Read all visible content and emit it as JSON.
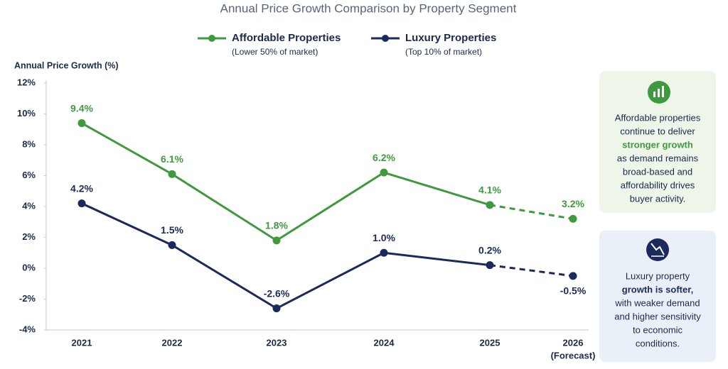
{
  "chart_data": {
    "type": "line",
    "title": "Annual Price Growth Comparison by Property Segment",
    "y_label": "Annual Price Growth (%)",
    "categories": [
      "2021",
      "2022",
      "2023",
      "2024",
      "2025",
      "2026"
    ],
    "category_notes": [
      null,
      null,
      null,
      null,
      null,
      "(Forecast)"
    ],
    "series": [
      {
        "name": "Affordable Properties",
        "description": "(Lower 50% of market)",
        "color": "#3f9a3f",
        "values": [
          9.4,
          6.1,
          1.8,
          6.2,
          4.1,
          3.2
        ],
        "value_labels": [
          "9.4%",
          "6.1%",
          "1.8%",
          "6.2%",
          "4.1%",
          "3.2%"
        ]
      },
      {
        "name": "Luxury Properties",
        "description": "(Top 10% of market)",
        "color": "#1b2a5c",
        "values": [
          4.2,
          1.5,
          -2.6,
          1.0,
          0.2,
          -0.5
        ],
        "value_labels": [
          "4.2%",
          "1.5%",
          "-2.6%",
          "1.0%",
          "0.2%",
          "-0.5%"
        ]
      }
    ],
    "ylim": [
      -4,
      12
    ],
    "yticks": [
      {
        "value": -4,
        "label": "-4%"
      },
      {
        "value": -2,
        "label": "-2%"
      },
      {
        "value": 0,
        "label": "0%"
      },
      {
        "value": 2,
        "label": "2%"
      },
      {
        "value": 4,
        "label": "4%"
      },
      {
        "value": 6,
        "label": "6%"
      },
      {
        "value": 8,
        "label": "8%"
      },
      {
        "value": 10,
        "label": "10%"
      },
      {
        "value": 12,
        "label": "12%"
      }
    ],
    "grid": false,
    "annotations": [
      {
        "lines": [
          {
            "text": "Affordable properties"
          },
          {
            "text": "continue to deliver"
          },
          {
            "text": "stronger growth",
            "bold": true
          },
          {
            "text": "as demand remains"
          },
          {
            "text": "broad-based and"
          },
          {
            "text": "affordability drives"
          },
          {
            "text": "buyer activity."
          }
        ]
      },
      {
        "lines": [
          {
            "text": "Luxury property"
          },
          {
            "text": "growth is softer,",
            "bold": true
          },
          {
            "text": "with weaker demand"
          },
          {
            "text": "and higher sensitivity"
          },
          {
            "text": "to economic"
          },
          {
            "text": "conditions."
          }
        ]
      }
    ]
  }
}
